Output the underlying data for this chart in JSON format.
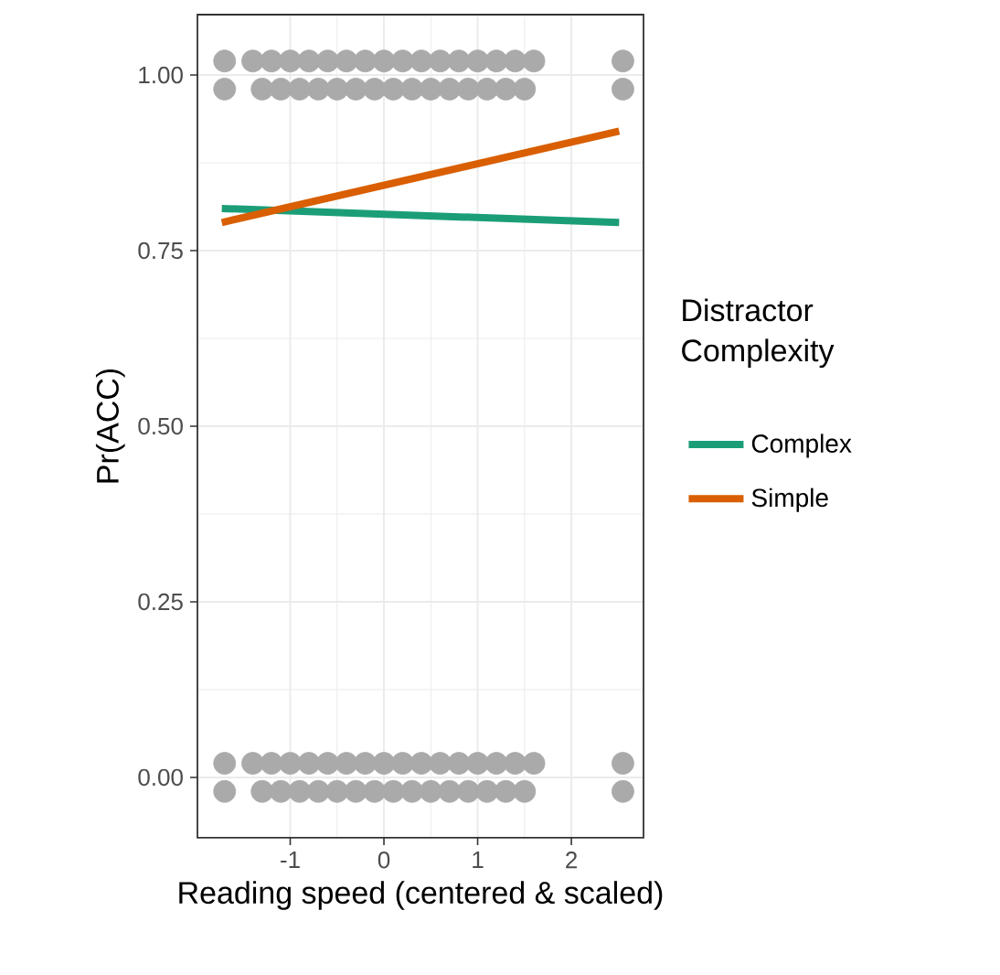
{
  "chart_data": {
    "type": "line",
    "xlabel": "Reading speed (centered & scaled)",
    "ylabel": "Pr(ACC)",
    "legend_title": "Distractor Complexity",
    "xlim": [
      -1.99,
      2.77
    ],
    "ylim": [
      -0.086,
      1.086
    ],
    "xticks": [
      -1,
      0,
      1,
      2
    ],
    "yticks": [
      {
        "value": 0,
        "label": "0.00"
      },
      {
        "value": 0.25,
        "label": "0.25"
      },
      {
        "value": 0.5,
        "label": "0.50"
      },
      {
        "value": 0.75,
        "label": "0.75"
      },
      {
        "value": 1,
        "label": "1.00"
      }
    ],
    "grid": true,
    "legend": "right",
    "series": [
      {
        "type": "scatter",
        "color": "#aaaaaa",
        "x": [
          -1.7,
          -1.7,
          -1.4,
          -1.3,
          -1.2,
          -1.1,
          -1.0,
          -0.9,
          -0.8,
          -0.7,
          -0.6,
          -0.5,
          -0.4,
          -0.3,
          -0.2,
          -0.1,
          0,
          0.1,
          0.2,
          0.3,
          0.4,
          0.5,
          0.6,
          0.7,
          0.8,
          0.9,
          1.0,
          1.1,
          1.2,
          1.3,
          1.4,
          1.5,
          1.6,
          2.55,
          2.55,
          -1.7,
          -1.7,
          -1.4,
          -1.3,
          -1.2,
          -1.1,
          -1.0,
          -0.9,
          -0.8,
          -0.7,
          -0.6,
          -0.5,
          -0.4,
          -0.3,
          -0.2,
          -0.1,
          0,
          0.1,
          0.2,
          0.3,
          0.4,
          0.5,
          0.6,
          0.7,
          0.8,
          0.9,
          1.0,
          1.1,
          1.2,
          1.3,
          1.4,
          1.5,
          1.6,
          2.55,
          2.55
        ],
        "values": [
          1.02,
          0.98,
          1.02,
          0.98,
          1.02,
          0.98,
          1.02,
          0.98,
          1.02,
          0.98,
          1.02,
          0.98,
          1.02,
          0.98,
          1.02,
          0.98,
          1.02,
          0.98,
          1.02,
          0.98,
          1.02,
          0.98,
          1.02,
          0.98,
          1.02,
          0.98,
          1.02,
          0.98,
          1.02,
          0.98,
          1.02,
          0.98,
          1.02,
          1.02,
          0.98,
          0.02,
          -0.02,
          0.02,
          -0.02,
          0.02,
          -0.02,
          0.02,
          -0.02,
          0.02,
          -0.02,
          0.02,
          -0.02,
          0.02,
          -0.02,
          0.02,
          -0.02,
          0.02,
          -0.02,
          0.02,
          -0.02,
          0.02,
          -0.02,
          0.02,
          -0.02,
          0.02,
          -0.02,
          0.02,
          -0.02,
          0.02,
          -0.02,
          0.02,
          -0.02,
          0.02,
          0.02,
          -0.02
        ]
      },
      {
        "name": "Complex",
        "color": "#1b9e77",
        "x": [
          -1.73,
          2.51
        ],
        "values": [
          0.81,
          0.79
        ]
      },
      {
        "name": "Simple",
        "color": "#d95f02",
        "x": [
          -1.73,
          2.51
        ],
        "values": [
          0.79,
          0.92
        ]
      }
    ]
  }
}
